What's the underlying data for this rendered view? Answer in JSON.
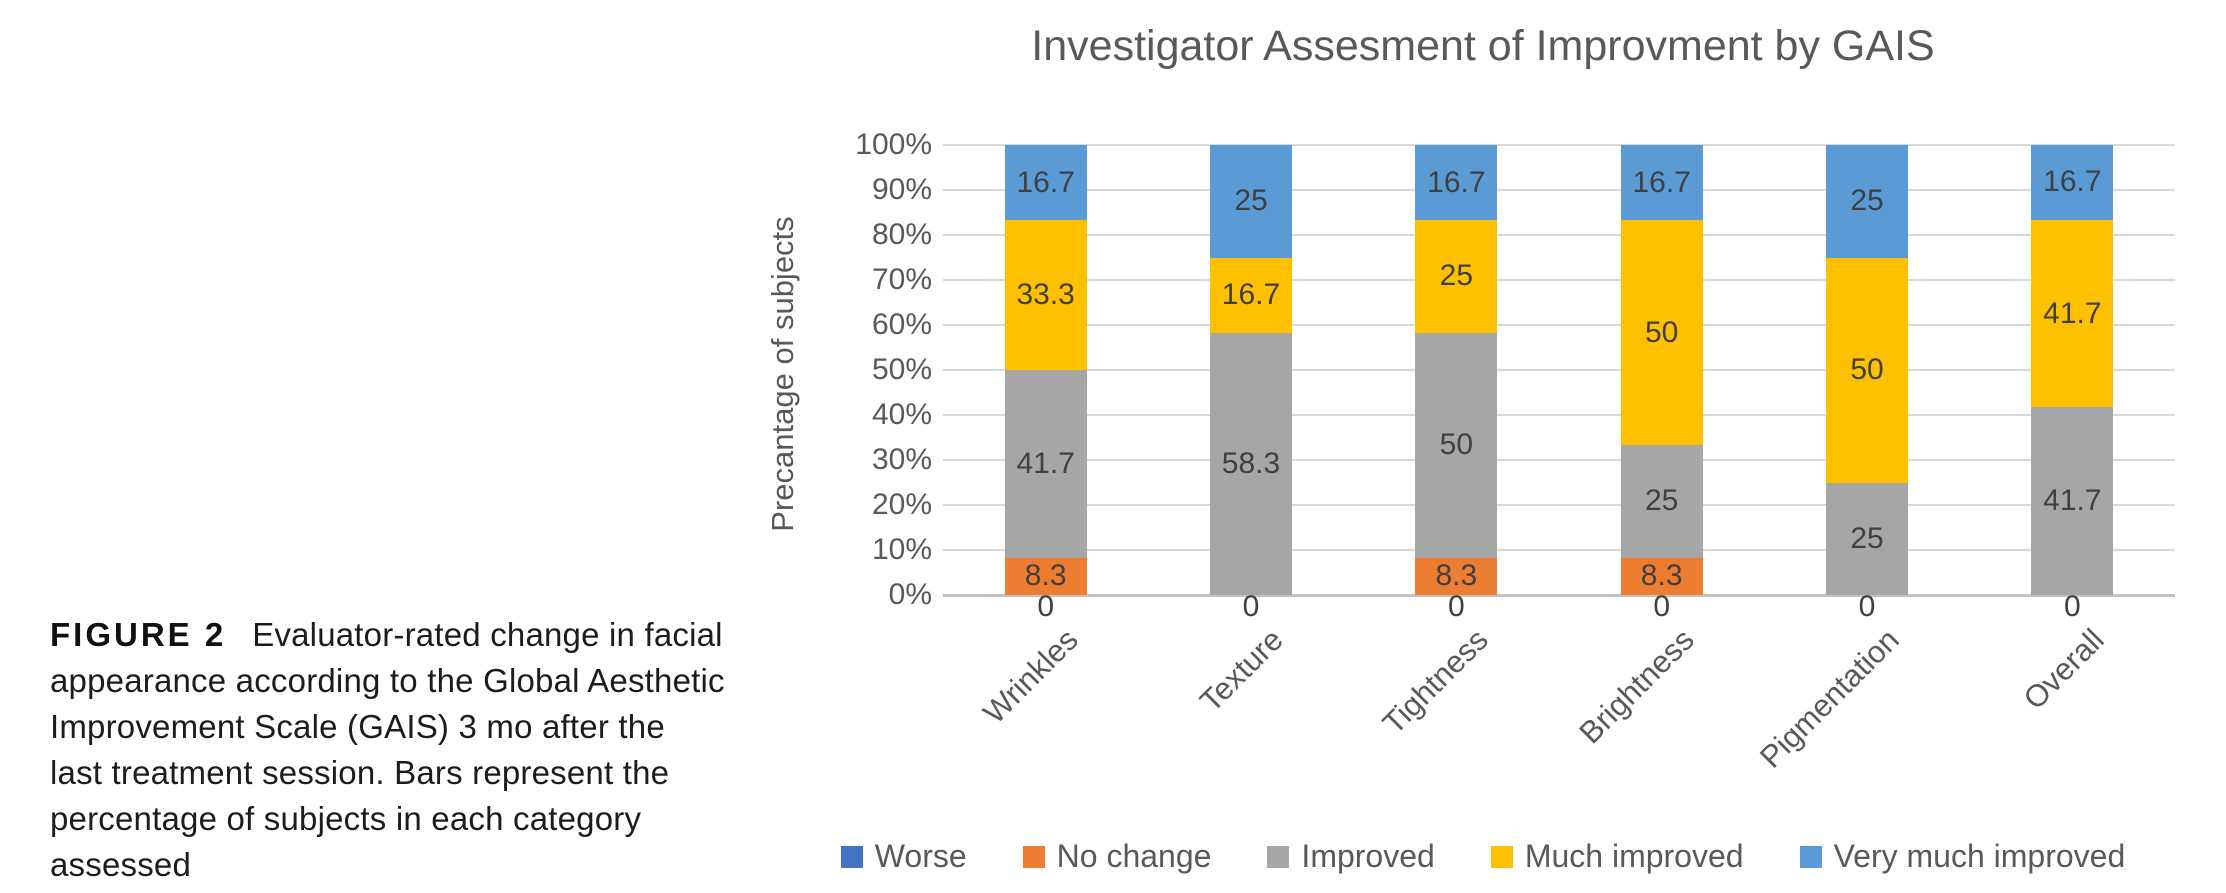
{
  "figure_caption": {
    "label": "FIGURE 2",
    "text": "Evaluator-rated change in facial appearance according to the Global Aesthetic Improvement Scale (GAIS) 3 mo after the last treatment session. Bars represent the percentage of subjects in each category assessed"
  },
  "chart_data": {
    "type": "bar",
    "subtype": "stacked-100-percent",
    "title": "Investigator Assesment of Improvment by GAIS",
    "ylabel": "Precantage of subjects",
    "xlabel": "",
    "categories": [
      "Wrinkles",
      "Texture",
      "Tightness",
      "Brightness",
      "Pigmentation",
      "Overall"
    ],
    "series": [
      {
        "name": "Worse",
        "color": "#4472C4",
        "values": [
          0,
          0,
          0,
          0,
          0,
          0
        ]
      },
      {
        "name": "No change",
        "color": "#ED7D31",
        "values": [
          8.3,
          0,
          8.3,
          8.3,
          0,
          0
        ]
      },
      {
        "name": "Improved",
        "color": "#A6A6A6",
        "values": [
          41.7,
          58.3,
          50,
          25,
          25,
          41.7
        ]
      },
      {
        "name": "Much improved",
        "color": "#FFC000",
        "values": [
          33.3,
          16.7,
          25,
          50,
          50,
          41.7
        ]
      },
      {
        "name": "Very much improved",
        "color": "#5B9BD5",
        "values": [
          16.7,
          25,
          16.7,
          16.7,
          25,
          16.7
        ]
      }
    ],
    "zero_label": "0",
    "ylim": [
      0,
      100
    ],
    "yticks": [
      "0%",
      "10%",
      "20%",
      "30%",
      "40%",
      "50%",
      "60%",
      "70%",
      "80%",
      "90%",
      "100%"
    ],
    "grid": true,
    "gridline_color": "#d9d9d9",
    "legend_position": "bottom",
    "data_labels": true,
    "label_color": "#404040",
    "text_color": "#595959"
  }
}
